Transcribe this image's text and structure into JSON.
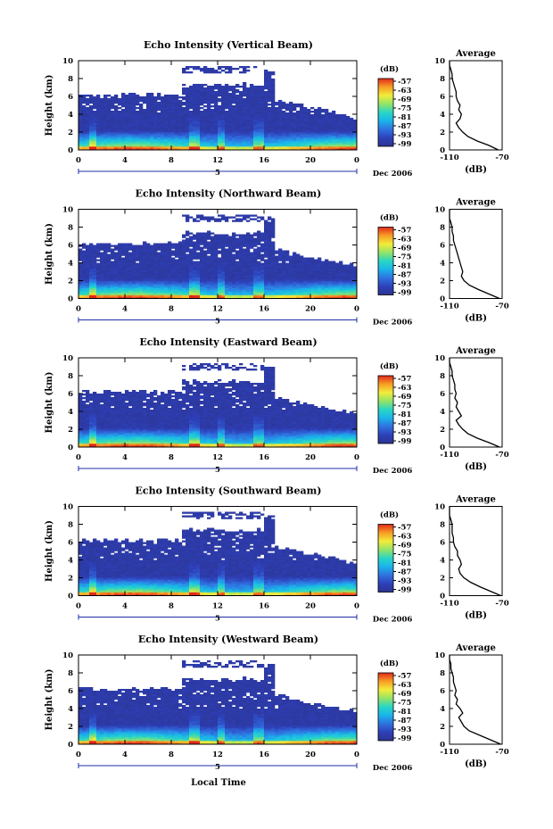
{
  "figure": {
    "xlabel": "Local Time",
    "date_label": "Dec 2006",
    "day_marker": "5",
    "colorbar_unit": "(dB)",
    "avg_title": "Average",
    "avg_xlabel": "(dB)",
    "ylabel": "Height (km)"
  },
  "chart_data": [
    {
      "type": "heatmap",
      "title": "Echo Intensity (Vertical Beam)",
      "xlabel": "",
      "ylabel": "Height (km)",
      "x_ticks": [
        "0",
        "4",
        "8",
        "12",
        "16",
        "20",
        "0"
      ],
      "y_ticks": [
        "0",
        "2",
        "4",
        "6",
        "8",
        "10"
      ],
      "xlim": [
        0,
        24
      ],
      "ylim": [
        0,
        10
      ],
      "colorbar": {
        "label": "(dB)",
        "ticks": [
          "-57",
          "-63",
          "-69",
          "-75",
          "-81",
          "-87",
          "-93",
          "-99"
        ],
        "colormap": "jet"
      },
      "profile": {
        "title": "Average",
        "xlabel": "(dB)",
        "x_ticks": [
          "-110",
          "-70"
        ],
        "xlim": [
          -110,
          -70
        ],
        "heights": [
          0,
          0.5,
          1,
          1.5,
          2,
          2.5,
          3,
          3.5,
          4,
          4.5,
          5,
          5.5,
          6,
          6.5,
          7,
          7.5,
          8,
          8.5,
          9,
          9.5,
          10
        ],
        "values": [
          -73,
          -80,
          -89,
          -96,
          -100,
          -103,
          -105,
          -102,
          -101,
          -103,
          -102,
          -104,
          -105,
          -105,
          -106,
          -107,
          -108,
          -108,
          -109,
          -110,
          -110
        ]
      }
    },
    {
      "type": "heatmap",
      "title": "Echo Intensity (Northward Beam)",
      "xlabel": "",
      "ylabel": "Height (km)",
      "x_ticks": [
        "0",
        "4",
        "8",
        "12",
        "16",
        "20",
        "0"
      ],
      "y_ticks": [
        "0",
        "2",
        "4",
        "6",
        "8",
        "10"
      ],
      "xlim": [
        0,
        24
      ],
      "ylim": [
        0,
        10
      ],
      "colorbar": {
        "label": "(dB)",
        "ticks": [
          "-57",
          "-63",
          "-69",
          "-75",
          "-81",
          "-87",
          "-93",
          "-99"
        ],
        "colormap": "jet"
      },
      "profile": {
        "title": "Average",
        "xlabel": "(dB)",
        "x_ticks": [
          "-110",
          "-70"
        ],
        "xlim": [
          -110,
          -70
        ],
        "heights": [
          0,
          0.5,
          1,
          1.5,
          2,
          2.5,
          3,
          3.5,
          4,
          4.5,
          5,
          5.5,
          6,
          6.5,
          7,
          7.5,
          8,
          8.5,
          9,
          9.5,
          10
        ],
        "values": [
          -72,
          -80,
          -88,
          -95,
          -99,
          -101,
          -100,
          -101,
          -102,
          -103,
          -104,
          -105,
          -106,
          -107,
          -107,
          -108,
          -108,
          -109,
          -110,
          -110,
          -110
        ]
      }
    },
    {
      "type": "heatmap",
      "title": "Echo Intensity (Eastward Beam)",
      "xlabel": "",
      "ylabel": "Height (km)",
      "x_ticks": [
        "0",
        "4",
        "8",
        "12",
        "16",
        "20",
        "0"
      ],
      "y_ticks": [
        "0",
        "2",
        "4",
        "6",
        "8",
        "10"
      ],
      "xlim": [
        0,
        24
      ],
      "ylim": [
        0,
        10
      ],
      "colorbar": {
        "label": "(dB)",
        "ticks": [
          "-57",
          "-63",
          "-69",
          "-75",
          "-81",
          "-87",
          "-93",
          "-99"
        ],
        "colormap": "jet"
      },
      "profile": {
        "title": "Average",
        "xlabel": "(dB)",
        "x_ticks": [
          "-110",
          "-70"
        ],
        "xlim": [
          -110,
          -70
        ],
        "heights": [
          0,
          0.5,
          1,
          1.5,
          2,
          2.5,
          3,
          3.5,
          4,
          4.5,
          5,
          5.5,
          6,
          6.5,
          7,
          7.5,
          8,
          8.5,
          9,
          9.5,
          10
        ],
        "values": [
          -72,
          -80,
          -89,
          -96,
          -100,
          -103,
          -105,
          -101,
          -103,
          -105,
          -104,
          -106,
          -105,
          -106,
          -106,
          -107,
          -108,
          -108,
          -109,
          -110,
          -110
        ]
      }
    },
    {
      "type": "heatmap",
      "title": "Echo Intensity (Southward Beam)",
      "xlabel": "",
      "ylabel": "Height (km)",
      "x_ticks": [
        "0",
        "4",
        "8",
        "12",
        "16",
        "20",
        "0"
      ],
      "y_ticks": [
        "0",
        "2",
        "4",
        "6",
        "8",
        "10"
      ],
      "xlim": [
        0,
        24
      ],
      "ylim": [
        0,
        10
      ],
      "colorbar": {
        "label": "(dB)",
        "ticks": [
          "-57",
          "-63",
          "-69",
          "-75",
          "-81",
          "-87",
          "-93",
          "-99"
        ],
        "colormap": "jet"
      },
      "profile": {
        "title": "Average",
        "xlabel": "(dB)",
        "x_ticks": [
          "-110",
          "-70"
        ],
        "xlim": [
          -110,
          -70
        ],
        "heights": [
          0,
          0.5,
          1,
          1.5,
          2,
          2.5,
          3,
          3.5,
          4,
          4.5,
          5,
          5.5,
          6,
          6.5,
          7,
          7.5,
          8,
          8.5,
          9,
          9.5,
          10
        ],
        "values": [
          -71,
          -79,
          -87,
          -94,
          -99,
          -102,
          -103,
          -101,
          -102,
          -104,
          -104,
          -106,
          -107,
          -107,
          -108,
          -108,
          -108,
          -109,
          -110,
          -110,
          -110
        ]
      }
    },
    {
      "type": "heatmap",
      "title": "Echo Intensity (Westward Beam)",
      "xlabel": "Local Time",
      "ylabel": "Height (km)",
      "x_ticks": [
        "0",
        "4",
        "8",
        "12",
        "16",
        "20",
        "0"
      ],
      "y_ticks": [
        "0",
        "2",
        "4",
        "6",
        "8",
        "10"
      ],
      "xlim": [
        0,
        24
      ],
      "ylim": [
        0,
        10
      ],
      "colorbar": {
        "label": "(dB)",
        "ticks": [
          "-57",
          "-63",
          "-69",
          "-75",
          "-81",
          "-87",
          "-93",
          "-99"
        ],
        "colormap": "jet"
      },
      "profile": {
        "title": "Average",
        "xlabel": "(dB)",
        "x_ticks": [
          "-110",
          "-70"
        ],
        "xlim": [
          -110,
          -70
        ],
        "heights": [
          0,
          0.5,
          1,
          1.5,
          2,
          2.5,
          3,
          3.5,
          4,
          4.5,
          5,
          5.5,
          6,
          6.5,
          7,
          7.5,
          8,
          8.5,
          9,
          9.5,
          10
        ],
        "values": [
          -71,
          -79,
          -87,
          -95,
          -99,
          -101,
          -103,
          -100,
          -102,
          -105,
          -104,
          -106,
          -105,
          -106,
          -107,
          -107,
          -108,
          -109,
          -109,
          -110,
          -110
        ]
      }
    }
  ]
}
